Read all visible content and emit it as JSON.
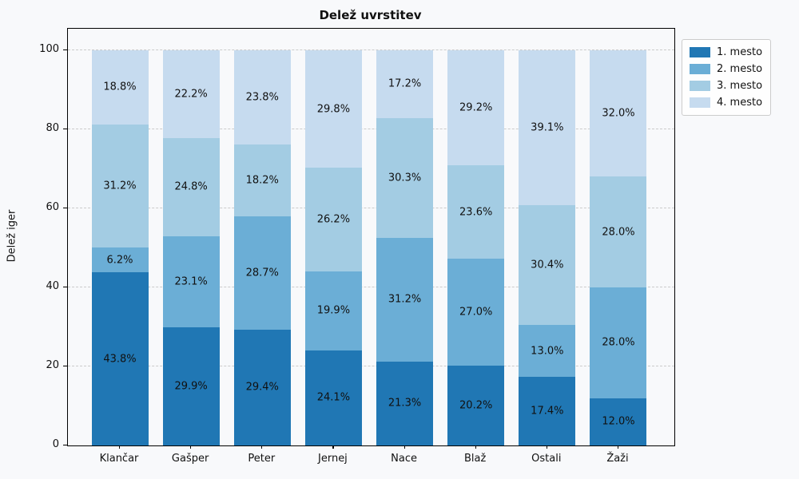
{
  "title": "Delež uvrstitev",
  "axes": {
    "ylabel": "Delež iger",
    "xlabel": "",
    "yticks": [
      0,
      20,
      40,
      60,
      80,
      100
    ]
  },
  "legend": {
    "items": [
      "1. mesto",
      "2. mesto",
      "3. mesto",
      "4. mesto"
    ],
    "position": "upper right outside"
  },
  "colors": {
    "figure_bg": "#f8f9fb",
    "legend_bg": "#fefefe",
    "grid": "#cbcbcb",
    "spine": "#000000",
    "text": "#111111"
  },
  "chart_data": {
    "type": "bar",
    "stacked": true,
    "title": "Delež uvrstitev",
    "xlabel": "",
    "ylabel": "Delež iger",
    "ylim": [
      0,
      105.4
    ],
    "grid": "horizontal dashed",
    "legend_position": "upper right outside",
    "value_labels": "percent one decimal, centered in segment",
    "categories": [
      "Klančar",
      "Gašper",
      "Peter",
      "Jernej",
      "Nace",
      "Blaž",
      "Ostali",
      "Žaži"
    ],
    "series": [
      {
        "name": "1. mesto",
        "color": "#2077b4",
        "values": [
          43.8,
          29.9,
          29.4,
          24.1,
          21.3,
          20.2,
          17.4,
          12.0
        ]
      },
      {
        "name": "2. mesto",
        "color": "#6baed6",
        "values": [
          6.2,
          23.1,
          28.7,
          19.9,
          31.2,
          27.0,
          13.0,
          28.0
        ]
      },
      {
        "name": "3. mesto",
        "color": "#a3cce3",
        "values": [
          31.2,
          24.8,
          18.2,
          26.2,
          30.3,
          23.6,
          30.4,
          28.0
        ]
      },
      {
        "name": "4. mesto",
        "color": "#c6dbef",
        "values": [
          18.8,
          22.2,
          23.8,
          29.8,
          17.2,
          29.2,
          39.1,
          32.0
        ]
      }
    ]
  }
}
